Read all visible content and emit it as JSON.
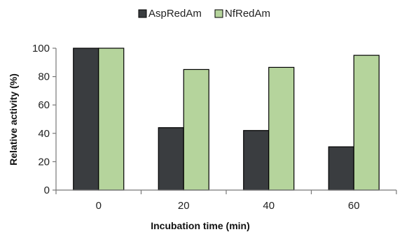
{
  "chart_data": {
    "type": "bar",
    "categories": [
      "0",
      "20",
      "40",
      "60"
    ],
    "series": [
      {
        "name": "AspRedAm",
        "values": [
          100,
          44,
          42,
          30.5
        ],
        "color": "#3a3d40"
      },
      {
        "name": "NfRedAm",
        "values": [
          100,
          85,
          86.5,
          95
        ],
        "color": "#b5d49c"
      }
    ],
    "title": "",
    "xlabel": "Incubation time (min)",
    "ylabel": "Relative activity (%)",
    "ylim": [
      0,
      100
    ],
    "yticks": [
      "0",
      "20",
      "40",
      "60",
      "80",
      "100"
    ],
    "grid": false,
    "legend_position": "top-center"
  }
}
